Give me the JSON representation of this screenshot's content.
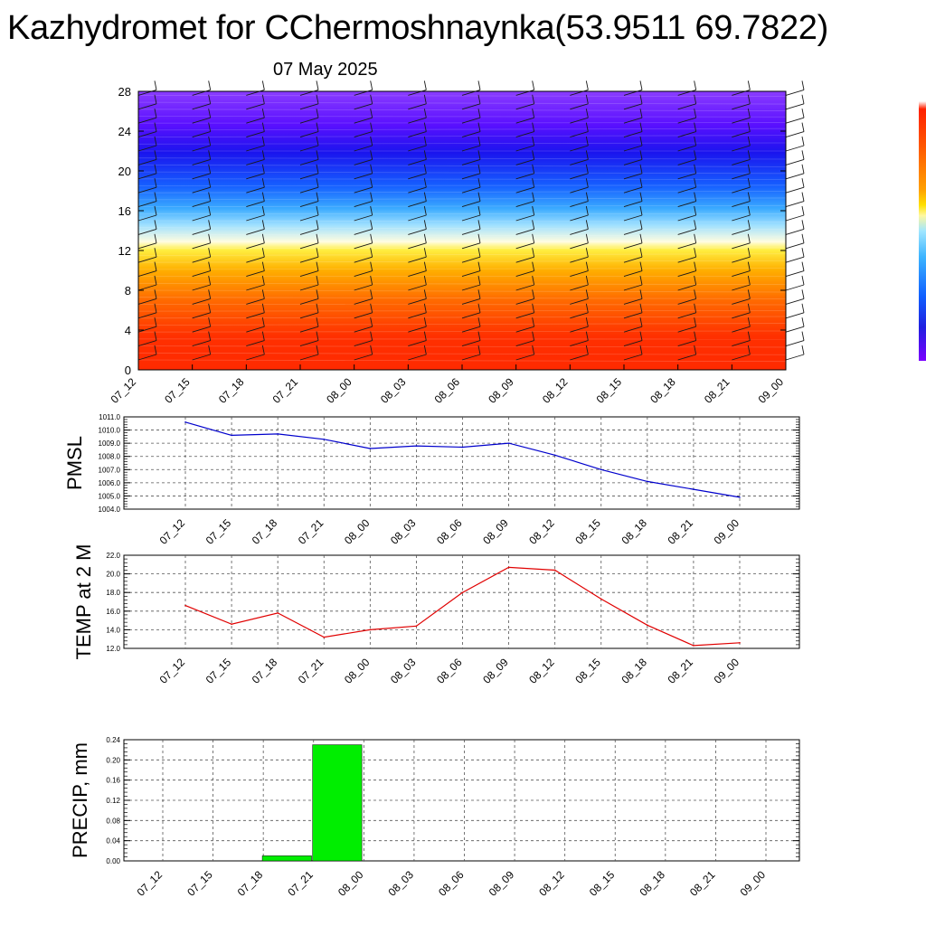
{
  "title": "Kazhydromet for CChermoshnaynka(53.9511 69.7822)",
  "date": "07 May 2025",
  "colors": {
    "pmsl_line": "#0000cc",
    "temp_line": "#e00000",
    "precip_bar": "#00ee00"
  },
  "chart_data": [
    {
      "type": "heatmap",
      "name": "vertical cross-section",
      "x_ticks": [
        "07_12",
        "07_15",
        "07_18",
        "07_21",
        "08_00",
        "08_03",
        "08_06",
        "08_09",
        "08_12",
        "08_15",
        "08_18",
        "08_21",
        "09_00"
      ],
      "y_ticks": [
        0,
        4,
        8,
        12,
        16,
        20,
        24,
        28
      ],
      "ylim": [
        0,
        28
      ],
      "colorbar": "red-orange-yellow-white-blue-violet",
      "wind_barbs": true
    },
    {
      "type": "line",
      "ylabel": "PMSL",
      "categories": [
        "07_12",
        "07_15",
        "07_18",
        "07_21",
        "08_00",
        "08_03",
        "08_06",
        "08_09",
        "08_12",
        "08_15",
        "08_18",
        "08_21",
        "09_00"
      ],
      "values": [
        1010.6,
        1009.6,
        1009.7,
        1009.3,
        1008.6,
        1008.8,
        1008.7,
        1009.0,
        1008.1,
        1007.0,
        1006.1,
        1005.5,
        1004.9
      ],
      "ylim": [
        1004.0,
        1011.0
      ],
      "y_ticks": [
        "1004.0",
        "1005.0",
        "1006.0",
        "1007.0",
        "1008.0",
        "1009.0",
        "1010.0",
        "1011.0"
      ],
      "grid": true
    },
    {
      "type": "line",
      "ylabel": "TEMP at 2 M",
      "categories": [
        "07_12",
        "07_15",
        "07_18",
        "07_21",
        "08_00",
        "08_03",
        "08_06",
        "08_09",
        "08_12",
        "08_15",
        "08_18",
        "08_21",
        "09_00"
      ],
      "values": [
        16.6,
        14.6,
        15.8,
        13.2,
        14.0,
        14.4,
        18.0,
        20.7,
        20.4,
        17.3,
        14.5,
        12.3,
        12.6
      ],
      "ylim": [
        12.0,
        22.0
      ],
      "y_ticks": [
        "12.0",
        "14.0",
        "16.0",
        "18.0",
        "20.0",
        "22.0"
      ],
      "grid": true
    },
    {
      "type": "bar",
      "ylabel": "PRECIP, mm",
      "categories": [
        "07_12",
        "07_15",
        "07_18",
        "07_21",
        "08_00",
        "08_03",
        "08_06",
        "08_09",
        "08_12",
        "08_15",
        "08_18",
        "08_21",
        "09_00"
      ],
      "values": [
        0,
        0,
        0,
        0.01,
        0.23,
        0,
        0,
        0,
        0,
        0,
        0,
        0,
        0
      ],
      "ylim": [
        0,
        0.24
      ],
      "y_ticks": [
        "0.00",
        "0.04",
        "0.08",
        "0.12",
        "0.16",
        "0.20",
        "0.24"
      ],
      "grid": true
    }
  ]
}
